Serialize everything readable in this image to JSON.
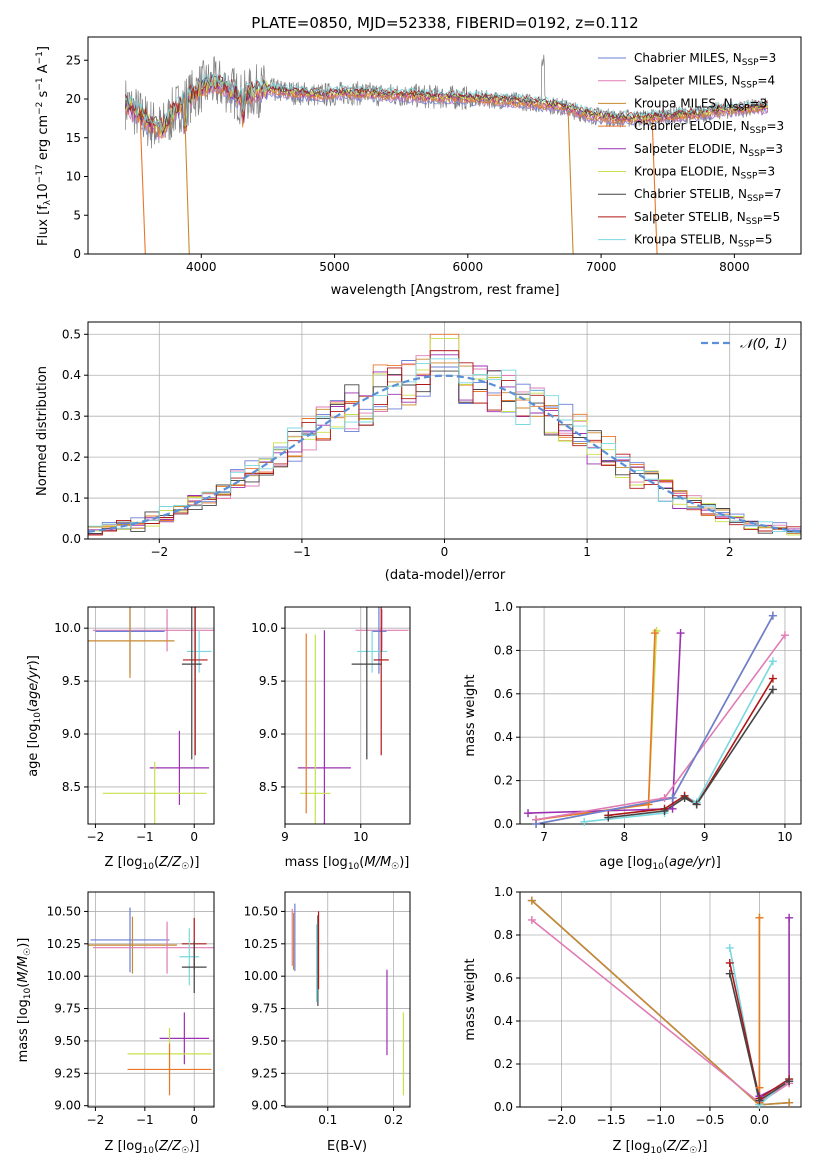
{
  "figure_title": "PLATE=0850, MJD=52338, FIBERID=0192, z=0.112",
  "colors": {
    "Chabrier MILES": "#6a7fd6",
    "Salpeter MILES": "#e07bb4",
    "Kroupa MILES": "#c88a2e",
    "Chabrier ELODIE": "#e8772a",
    "Salpeter ELODIE": "#9b30b0",
    "Kroupa ELODIE": "#c8e04a",
    "Chabrier STELIB": "#444444",
    "Salpeter STELIB": "#b01818",
    "Kroupa STELIB": "#7ad8e0",
    "data": "#7f7f7f",
    "normal": "#5b8fd8"
  },
  "chart_data": [
    {
      "id": "spectrum",
      "type": "line",
      "title": "PLATE=0850, MJD=52338, FIBERID=0192, z=0.112",
      "xlabel": "wavelength [Angstrom, rest frame]",
      "ylabel": "Flux [f_λ 10^-17 erg cm^-2 s^-1 A^-1]",
      "xlim": [
        3150,
        8500
      ],
      "ylim": [
        0,
        28
      ],
      "xticks": [
        4000,
        5000,
        6000,
        7000,
        8000
      ],
      "yticks": [
        0,
        5,
        10,
        15,
        20,
        25
      ],
      "grid": false,
      "legend_position": "upper-right",
      "legend": [
        {
          "name": "Chabrier MILES, N_SSP=3",
          "base": "Chabrier MILES, N",
          "sub": "SSP",
          "tail": "=3"
        },
        {
          "name": "Salpeter MILES, N_SSP=4",
          "base": "Salpeter MILES, N",
          "sub": "SSP",
          "tail": "=4"
        },
        {
          "name": "Kroupa MILES, N_SSP=3",
          "base": "Kroupa MILES, N",
          "sub": "SSP",
          "tail": "=3"
        },
        {
          "name": "Chabrier ELODIE, N_SSP=3",
          "base": "Chabrier ELODIE, N",
          "sub": "SSP",
          "tail": "=3"
        },
        {
          "name": "Salpeter ELODIE, N_SSP=3",
          "base": "Salpeter ELODIE, N",
          "sub": "SSP",
          "tail": "=3"
        },
        {
          "name": "Kroupa ELODIE, N_SSP=3",
          "base": "Kroupa ELODIE, N",
          "sub": "SSP",
          "tail": "=3"
        },
        {
          "name": "Chabrier STELIB, N_SSP=7",
          "base": "Chabrier STELIB, N",
          "sub": "SSP",
          "tail": "=7"
        },
        {
          "name": "Salpeter STELIB, N_SSP=5",
          "base": "Salpeter STELIB, N",
          "sub": "SSP",
          "tail": "=5"
        },
        {
          "name": "Kroupa STELIB, N_SSP=5",
          "base": "Kroupa STELIB, N",
          "sub": "SSP",
          "tail": "=5"
        }
      ],
      "continuum": {
        "x": [
          3430,
          3500,
          3600,
          3700,
          3800,
          3900,
          4000,
          4100,
          4200,
          4300,
          4400,
          4500,
          4700,
          4900,
          5100,
          5300,
          5500,
          5700,
          5900,
          6100,
          6300,
          6500,
          6700,
          6900,
          7100,
          7300,
          7500,
          7700,
          7900,
          8100,
          8250
        ],
        "y": [
          19.5,
          18.5,
          17.0,
          16.0,
          18.5,
          20.0,
          21.5,
          22.0,
          21.5,
          20.0,
          21.0,
          21.2,
          20.8,
          20.5,
          20.8,
          20.6,
          20.5,
          20.3,
          20.2,
          20.0,
          19.8,
          19.5,
          19.0,
          18.0,
          17.5,
          17.5,
          17.8,
          18.0,
          18.5,
          18.8,
          19.0
        ]
      },
      "dropouts": [
        {
          "series": "Chabrier ELODIE",
          "x": 3580
        },
        {
          "series": "Kroupa MILES",
          "x": 3910
        },
        {
          "series": "Kroupa MILES",
          "x": 6790
        },
        {
          "series": "Chabrier ELODIE",
          "x": 7420
        }
      ]
    },
    {
      "id": "residual-histogram",
      "type": "histogram",
      "xlabel": "(data-model)/error",
      "ylabel": "Normed distribution",
      "xlim": [
        -2.5,
        2.5
      ],
      "ylim": [
        0,
        0.53
      ],
      "xticks": [
        -2,
        -1,
        0,
        1,
        2
      ],
      "yticks": [
        0.0,
        0.1,
        0.2,
        0.3,
        0.4,
        0.5
      ],
      "grid": true,
      "legend_position": "upper-right",
      "legend": [
        {
          "name": "N(0,1)"
        }
      ],
      "bin_width": 0.1,
      "reference": {
        "name": "N(0,1)",
        "mean": 0,
        "sigma": 1
      },
      "series_order": [
        "Chabrier MILES",
        "Salpeter MILES",
        "Kroupa MILES",
        "Chabrier ELODIE",
        "Salpeter ELODIE",
        "Kroupa ELODIE",
        "Chabrier STELIB",
        "Salpeter STELIB",
        "Kroupa STELIB"
      ],
      "peak_values": [
        0.42,
        0.46,
        0.43,
        0.5,
        0.45,
        0.49,
        0.41,
        0.46,
        0.44
      ]
    },
    {
      "id": "age-vs-metallicity",
      "type": "errorbar",
      "xlabel": "Z [log10(Z/Z☉)]",
      "ylabel": "age [log10(age/yr)]",
      "xlim": [
        -2.15,
        0.4
      ],
      "ylim": [
        8.15,
        10.2
      ],
      "xticks": [
        -2,
        -1,
        0
      ],
      "yticks": [
        8.5,
        9.0,
        9.5,
        10.0
      ],
      "grid": true,
      "points": [
        {
          "series": "Salpeter MILES",
          "x": -0.55,
          "y": 9.98,
          "xerr": 1.5,
          "yerr": 0.2
        },
        {
          "series": "Chabrier MILES",
          "x": -1.3,
          "y": 9.97,
          "xerr": 0.7,
          "yerr": 0.4
        },
        {
          "series": "Kroupa MILES",
          "x": -1.3,
          "y": 9.88,
          "xerr": 0.9,
          "yerr": 0.35
        },
        {
          "series": "Kroupa STELIB",
          "x": 0.1,
          "y": 9.78,
          "xerr": 0.25,
          "yerr": 0.2
        },
        {
          "series": "Salpeter STELIB",
          "x": 0.02,
          "y": 9.7,
          "xerr": 0.25,
          "yerr": 0.9
        },
        {
          "series": "Chabrier STELIB",
          "x": -0.05,
          "y": 9.66,
          "xerr": 0.2,
          "yerr": 0.9
        },
        {
          "series": "Salpeter ELODIE",
          "x": -0.3,
          "y": 8.68,
          "xerr": 0.6,
          "yerr": 0.35
        },
        {
          "series": "Kroupa ELODIE",
          "x": -0.8,
          "y": 8.44,
          "xerr": 1.05,
          "yerr": 0.3
        }
      ]
    },
    {
      "id": "age-vs-mass",
      "type": "errorbar",
      "xlabel": "mass [log10(M/M☉)]",
      "ylabel": "",
      "xlim": [
        9.0,
        10.65
      ],
      "ylim": [
        8.15,
        10.2
      ],
      "xticks": [
        9,
        10
      ],
      "yticks": [
        8.5,
        9.0,
        9.5,
        10.0
      ],
      "grid": true,
      "points": [
        {
          "series": "Salpeter MILES",
          "x": 10.28,
          "y": 9.98,
          "xerr": 0.35,
          "yerr": 0.2
        },
        {
          "series": "Chabrier MILES",
          "x": 10.24,
          "y": 9.97,
          "xerr": 0.1,
          "yerr": 0.4
        },
        {
          "series": "Kroupa STELIB",
          "x": 10.15,
          "y": 9.78,
          "xerr": 0.2,
          "yerr": 0.2
        },
        {
          "series": "Salpeter STELIB",
          "x": 10.27,
          "y": 9.7,
          "xerr": 0.1,
          "yerr": 0.9
        },
        {
          "series": "Chabrier STELIB",
          "x": 10.08,
          "y": 9.66,
          "xerr": 0.2,
          "yerr": 0.9
        },
        {
          "series": "Salpeter ELODIE",
          "x": 9.52,
          "y": 8.68,
          "xerr": 0.35,
          "yerr": 1.3
        },
        {
          "series": "Kroupa ELODIE",
          "x": 9.4,
          "y": 8.44,
          "xerr": 0.2,
          "yerr": 1.5
        },
        {
          "series": "Chabrier ELODIE",
          "x": 9.28,
          "y": 9.1,
          "xerr": 0.0,
          "yerr": 0.85
        }
      ]
    },
    {
      "id": "mass-weight-vs-age",
      "type": "line",
      "xlabel": "age [log10(age/yr)]",
      "ylabel": "mass weight",
      "xlim": [
        6.7,
        10.2
      ],
      "ylim": [
        0,
        1
      ],
      "xticks": [
        7,
        8,
        9,
        10
      ],
      "yticks": [
        0.0,
        0.2,
        0.4,
        0.6,
        0.8,
        1.0
      ],
      "grid": true,
      "series": [
        {
          "name": "Kroupa ELODIE",
          "x": [
            6.9,
            8.3,
            8.4
          ],
          "y": [
            0.02,
            0.09,
            0.89
          ]
        },
        {
          "name": "Chabrier ELODIE",
          "x": [
            6.9,
            8.3,
            8.38
          ],
          "y": [
            0.02,
            0.09,
            0.88
          ]
        },
        {
          "name": "Salpeter ELODIE",
          "x": [
            6.8,
            8.6,
            8.7
          ],
          "y": [
            0.05,
            0.07,
            0.88
          ]
        },
        {
          "name": "Salpeter MILES",
          "x": [
            6.9,
            8.5,
            10.0
          ],
          "y": [
            0.02,
            0.12,
            0.87
          ]
        },
        {
          "name": "Kroupa MILES",
          "x": [
            6.9,
            8.6,
            9.85
          ],
          "y": [
            0.0,
            0.12,
            0.96
          ]
        },
        {
          "name": "Chabrier MILES",
          "x": [
            6.9,
            8.6,
            9.85
          ],
          "y": [
            0.0,
            0.12,
            0.96
          ]
        },
        {
          "name": "Kroupa STELIB",
          "x": [
            7.5,
            8.5,
            8.75,
            8.9,
            9.85
          ],
          "y": [
            0.01,
            0.05,
            0.13,
            0.1,
            0.75
          ]
        },
        {
          "name": "Salpeter STELIB",
          "x": [
            7.8,
            8.5,
            8.75,
            8.9,
            9.85
          ],
          "y": [
            0.04,
            0.07,
            0.13,
            0.09,
            0.67
          ]
        },
        {
          "name": "Chabrier STELIB",
          "x": [
            7.8,
            8.5,
            8.75,
            8.9,
            9.85
          ],
          "y": [
            0.03,
            0.06,
            0.12,
            0.09,
            0.62
          ]
        }
      ]
    },
    {
      "id": "mass-vs-metallicity",
      "type": "errorbar",
      "xlabel": "Z [log10(Z/Z☉)]",
      "ylabel": "mass [log10(M/M☉)]",
      "xlim": [
        -2.15,
        0.4
      ],
      "ylim": [
        8.99,
        10.65
      ],
      "xticks": [
        -2,
        -1,
        0
      ],
      "yticks": [
        9.0,
        9.25,
        9.5,
        9.75,
        10.0,
        10.25,
        10.5
      ],
      "grid": true,
      "points": [
        {
          "series": "Chabrier MILES",
          "x": -1.3,
          "y": 10.28,
          "xerr": 0.8,
          "yerr": 0.25
        },
        {
          "series": "Kroupa MILES",
          "x": -1.25,
          "y": 10.24,
          "xerr": 0.9,
          "yerr": 0.22
        },
        {
          "series": "Salpeter MILES",
          "x": -0.55,
          "y": 10.22,
          "xerr": 1.5,
          "yerr": 0.2
        },
        {
          "series": "Salpeter STELIB",
          "x": 0.0,
          "y": 10.25,
          "xerr": 0.25,
          "yerr": 0.2
        },
        {
          "series": "Kroupa STELIB",
          "x": -0.1,
          "y": 10.15,
          "xerr": 0.2,
          "yerr": 0.22
        },
        {
          "series": "Chabrier STELIB",
          "x": 0.0,
          "y": 10.07,
          "xerr": 0.25,
          "yerr": 0.2
        },
        {
          "series": "Salpeter ELODIE",
          "x": -0.2,
          "y": 9.52,
          "xerr": 0.5,
          "yerr": 0.2
        },
        {
          "series": "Kroupa ELODIE",
          "x": -0.5,
          "y": 9.4,
          "xerr": 0.85,
          "yerr": 0.2
        },
        {
          "series": "Chabrier ELODIE",
          "x": -0.5,
          "y": 9.28,
          "xerr": 0.85,
          "yerr": 0.2
        }
      ]
    },
    {
      "id": "mass-vs-ebv",
      "type": "errorbar",
      "xlabel": "E(B-V)",
      "ylabel": "",
      "xlim": [
        0.035,
        0.225
      ],
      "ylim": [
        8.99,
        10.65
      ],
      "xticks": [
        0.1,
        0.2
      ],
      "yticks": [
        9.0,
        9.25,
        9.5,
        9.75,
        10.0,
        10.25,
        10.5
      ],
      "grid": true,
      "points": [
        {
          "series": "Chabrier MILES",
          "x": 0.05,
          "y": 10.3,
          "xerr": 0,
          "yerr": 0.26
        },
        {
          "series": "Kroupa MILES",
          "x": 0.048,
          "y": 10.27,
          "xerr": 0,
          "yerr": 0.22
        },
        {
          "series": "Salpeter MILES",
          "x": 0.046,
          "y": 10.3,
          "xerr": 0,
          "yerr": 0.22
        },
        {
          "series": "Chabrier STELIB",
          "x": 0.085,
          "y": 10.12,
          "xerr": 0,
          "yerr": 0.35
        },
        {
          "series": "Salpeter STELIB",
          "x": 0.086,
          "y": 10.2,
          "xerr": 0,
          "yerr": 0.3
        },
        {
          "series": "Kroupa STELIB",
          "x": 0.083,
          "y": 10.1,
          "xerr": 0,
          "yerr": 0.3
        },
        {
          "series": "Salpeter ELODIE",
          "x": 0.19,
          "y": 9.72,
          "xerr": 0,
          "yerr": 0.33
        },
        {
          "series": "Kroupa ELODIE",
          "x": 0.215,
          "y": 9.4,
          "xerr": 0,
          "yerr": 0.32
        }
      ]
    },
    {
      "id": "mass-weight-vs-metallicity",
      "type": "line",
      "xlabel": "Z [log10(Z/Z☉)]",
      "ylabel": "mass weight",
      "xlim": [
        -2.42,
        0.42
      ],
      "ylim": [
        0,
        1
      ],
      "xticks": [
        -2.0,
        -1.5,
        -1.0,
        -0.5,
        0.0
      ],
      "yticks": [
        0.0,
        0.2,
        0.4,
        0.6,
        0.8,
        1.0
      ],
      "grid": true,
      "series": [
        {
          "name": "Chabrier MILES",
          "x": [
            -2.3,
            0.0,
            0.3
          ],
          "y": [
            0.96,
            0.01,
            0.02
          ]
        },
        {
          "name": "Kroupa MILES",
          "x": [
            -2.3,
            0.0,
            0.3
          ],
          "y": [
            0.96,
            0.01,
            0.02
          ]
        },
        {
          "name": "Salpeter MILES",
          "x": [
            -2.3,
            0.0,
            0.3
          ],
          "y": [
            0.87,
            0.02,
            0.11
          ]
        },
        {
          "name": "Kroupa ELODIE",
          "x": [
            0.0,
            0.0,
            0.0
          ],
          "y": [
            0.02,
            0.88,
            0.09
          ]
        },
        {
          "name": "Chabrier ELODIE",
          "x": [
            0.0,
            0.0,
            0.0
          ],
          "y": [
            0.02,
            0.88,
            0.09
          ]
        },
        {
          "name": "Salpeter ELODIE",
          "x": [
            0.0,
            0.3,
            0.3
          ],
          "y": [
            0.05,
            0.12,
            0.88
          ]
        },
        {
          "name": "Kroupa STELIB",
          "x": [
            -0.3,
            0.0,
            0.3
          ],
          "y": [
            0.74,
            0.01,
            0.13
          ]
        },
        {
          "name": "Salpeter STELIB",
          "x": [
            -0.3,
            0.0,
            0.3
          ],
          "y": [
            0.67,
            0.04,
            0.13
          ]
        },
        {
          "name": "Chabrier STELIB",
          "x": [
            -0.3,
            0.0,
            0.3
          ],
          "y": [
            0.62,
            0.03,
            0.12
          ]
        }
      ]
    }
  ]
}
